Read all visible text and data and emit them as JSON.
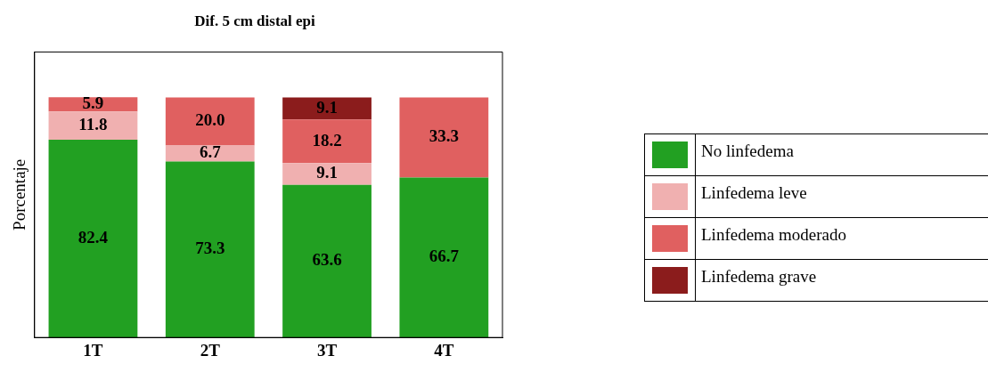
{
  "chart_data": {
    "type": "bar",
    "title": "Dif. 5 cm distal epi",
    "ylabel": "Porcentaje",
    "categories": [
      "1T",
      "2T",
      "3T",
      "4T"
    ],
    "stacked": true,
    "ylim": [
      0,
      119
    ],
    "tick_labels": "x",
    "grid": false,
    "legend": "right",
    "data_labels": false,
    "series": [
      {
        "name": "No linfedema",
        "color": "#22a022",
        "values": [
          82.4,
          73.3,
          63.6,
          66.7
        ],
        "value_labels": [
          "82.4",
          "73.3",
          "63.6",
          "66.7"
        ]
      },
      {
        "name": "Linfedema leve",
        "color": "#f0b0b0",
        "values": [
          11.8,
          6.7,
          9.1,
          0
        ],
        "value_labels": [
          "11.8",
          "6.7",
          "9.1",
          null
        ]
      },
      {
        "name": "Linfedema moderado",
        "color": "#e06060",
        "values": [
          5.9,
          20.0,
          18.2,
          33.3
        ],
        "value_labels": [
          "5.9",
          "20.0",
          "18.2",
          "33.3"
        ]
      },
      {
        "name": "Linfedema grave",
        "color": "#8b1c1c",
        "values": [
          0,
          0,
          9.1,
          0
        ],
        "value_labels": [
          null,
          null,
          "9.1",
          null
        ]
      }
    ]
  }
}
